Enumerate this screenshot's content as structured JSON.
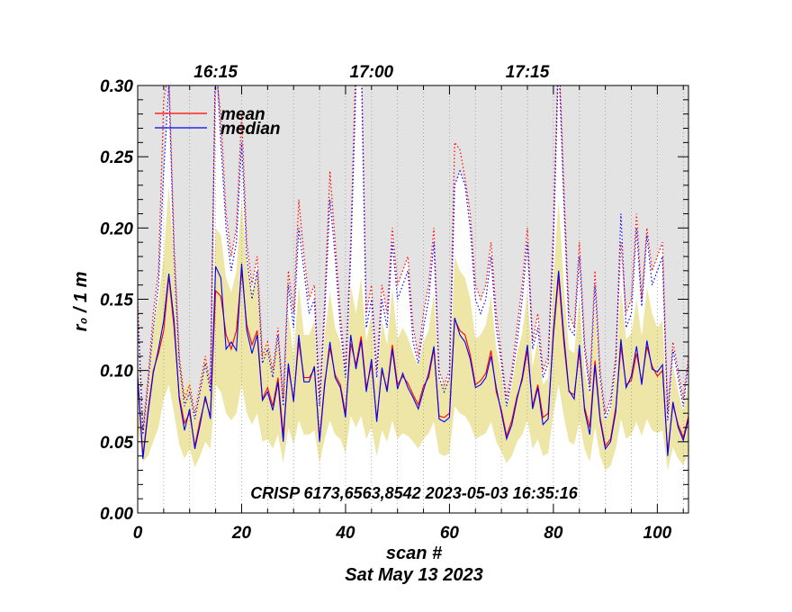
{
  "chart_data": {
    "type": "line",
    "title": "",
    "xlabel": "scan #",
    "ylabel": "r₀ / 1 m",
    "date_label": "Sat May 13 2023",
    "annotation": "CRISP 6173,6563,8542 2023-05-03 16:35:16",
    "xlim": [
      0,
      106
    ],
    "ylim": [
      0,
      0.3
    ],
    "x_ticks": [
      0,
      20,
      40,
      60,
      80,
      100
    ],
    "y_ticks": [
      0.0,
      0.05,
      0.1,
      0.15,
      0.2,
      0.25,
      0.3
    ],
    "x_tick_labels": [
      "0",
      "20",
      "40",
      "60",
      "80",
      "100"
    ],
    "y_tick_labels": [
      "0.00",
      "0.05",
      "0.10",
      "0.15",
      "0.20",
      "0.25",
      "0.30"
    ],
    "top_time_labels": [
      {
        "x": 15,
        "text": "16:15"
      },
      {
        "x": 45,
        "text": "17:00"
      },
      {
        "x": 75,
        "text": "17:15"
      }
    ],
    "vertical_gridlines_x": [
      0,
      5,
      10,
      15,
      20,
      25,
      30,
      35,
      40,
      45,
      50,
      55,
      60,
      65,
      70,
      75,
      80,
      85,
      90,
      95,
      100,
      105
    ],
    "legend_position": "top-left",
    "series": [
      {
        "name": "mean",
        "color": "#ff0000",
        "values": [
          0.094,
          0.04,
          0.072,
          0.1,
          0.112,
          0.128,
          0.166,
          0.13,
          0.082,
          0.063,
          0.07,
          0.047,
          0.065,
          0.08,
          0.068,
          0.156,
          0.152,
          0.125,
          0.115,
          0.128,
          0.17,
          0.132,
          0.118,
          0.128,
          0.08,
          0.088,
          0.075,
          0.095,
          0.055,
          0.102,
          0.08,
          0.12,
          0.095,
          0.095,
          0.101,
          0.052,
          0.092,
          0.116,
          0.097,
          0.09,
          0.07,
          0.119,
          0.104,
          0.124,
          0.088,
          0.104,
          0.066,
          0.1,
          0.087,
          0.118,
          0.09,
          0.096,
          0.091,
          0.083,
          0.076,
          0.089,
          0.095,
          0.115,
          0.068,
          0.067,
          0.07,
          0.136,
          0.128,
          0.125,
          0.111,
          0.09,
          0.093,
          0.098,
          0.114,
          0.085,
          0.072,
          0.054,
          0.065,
          0.082,
          0.093,
          0.114,
          0.075,
          0.09,
          0.067,
          0.07,
          0.124,
          0.166,
          0.12,
          0.085,
          0.083,
          0.113,
          0.074,
          0.06,
          0.107,
          0.067,
          0.047,
          0.052,
          0.074,
          0.117,
          0.09,
          0.093,
          0.112,
          0.092,
          0.117,
          0.103,
          0.096,
          0.1,
          0.043,
          0.076,
          0.062,
          0.053,
          0.068
        ],
        "ci_upper_dotted": [
          0.15,
          0.058,
          0.095,
          0.14,
          0.17,
          0.29,
          0.31,
          0.19,
          0.11,
          0.08,
          0.09,
          0.07,
          0.09,
          0.11,
          0.09,
          0.31,
          0.28,
          0.21,
          0.18,
          0.2,
          0.28,
          0.19,
          0.16,
          0.18,
          0.11,
          0.12,
          0.1,
          0.13,
          0.08,
          0.17,
          0.14,
          0.22,
          0.18,
          0.15,
          0.16,
          0.08,
          0.15,
          0.24,
          0.19,
          0.14,
          0.1,
          0.19,
          0.32,
          0.33,
          0.14,
          0.16,
          0.1,
          0.16,
          0.14,
          0.2,
          0.16,
          0.17,
          0.18,
          0.13,
          0.11,
          0.14,
          0.16,
          0.2,
          0.1,
          0.09,
          0.1,
          0.26,
          0.255,
          0.235,
          0.21,
          0.16,
          0.15,
          0.16,
          0.19,
          0.14,
          0.11,
          0.08,
          0.1,
          0.13,
          0.16,
          0.2,
          0.12,
          0.14,
          0.1,
          0.11,
          0.2,
          0.33,
          0.23,
          0.14,
          0.13,
          0.19,
          0.12,
          0.09,
          0.17,
          0.1,
          0.07,
          0.08,
          0.11,
          0.19,
          0.14,
          0.15,
          0.21,
          0.15,
          0.2,
          0.17,
          0.18,
          0.19,
          0.07,
          0.12,
          0.1,
          0.08,
          0.11
        ]
      },
      {
        "name": "median",
        "color": "#0000ff",
        "values": [
          0.096,
          0.038,
          0.07,
          0.098,
          0.115,
          0.135,
          0.168,
          0.135,
          0.08,
          0.058,
          0.073,
          0.045,
          0.062,
          0.082,
          0.066,
          0.173,
          0.165,
          0.115,
          0.12,
          0.114,
          0.175,
          0.128,
          0.112,
          0.125,
          0.079,
          0.085,
          0.072,
          0.092,
          0.05,
          0.105,
          0.078,
          0.125,
          0.092,
          0.092,
          0.103,
          0.05,
          0.09,
          0.12,
          0.095,
          0.088,
          0.067,
          0.125,
          0.101,
          0.121,
          0.085,
          0.108,
          0.064,
          0.102,
          0.085,
          0.115,
          0.087,
          0.098,
          0.088,
          0.081,
          0.073,
          0.086,
          0.098,
          0.117,
          0.066,
          0.064,
          0.067,
          0.137,
          0.125,
          0.12,
          0.108,
          0.088,
          0.09,
          0.095,
          0.11,
          0.088,
          0.07,
          0.052,
          0.062,
          0.08,
          0.095,
          0.118,
          0.073,
          0.088,
          0.062,
          0.066,
          0.128,
          0.17,
          0.125,
          0.086,
          0.08,
          0.118,
          0.072,
          0.055,
          0.104,
          0.065,
          0.045,
          0.05,
          0.071,
          0.122,
          0.088,
          0.096,
          0.117,
          0.09,
          0.121,
          0.101,
          0.099,
          0.104,
          0.04,
          0.078,
          0.06,
          0.051,
          0.066
        ],
        "ci_upper_dotted": [
          0.14,
          0.055,
          0.09,
          0.13,
          0.16,
          0.24,
          0.3,
          0.18,
          0.105,
          0.075,
          0.085,
          0.066,
          0.085,
          0.105,
          0.085,
          0.33,
          0.26,
          0.2,
          0.17,
          0.19,
          0.26,
          0.18,
          0.15,
          0.17,
          0.105,
          0.115,
          0.095,
          0.125,
          0.075,
          0.16,
          0.13,
          0.2,
          0.17,
          0.14,
          0.15,
          0.075,
          0.14,
          0.22,
          0.18,
          0.13,
          0.095,
          0.18,
          0.3,
          0.32,
          0.13,
          0.15,
          0.095,
          0.15,
          0.13,
          0.19,
          0.15,
          0.16,
          0.17,
          0.12,
          0.105,
          0.13,
          0.15,
          0.19,
          0.095,
          0.085,
          0.095,
          0.23,
          0.24,
          0.23,
          0.2,
          0.15,
          0.14,
          0.15,
          0.18,
          0.13,
          0.105,
          0.075,
          0.095,
          0.12,
          0.15,
          0.19,
          0.115,
          0.13,
          0.095,
          0.105,
          0.19,
          0.32,
          0.22,
          0.13,
          0.125,
          0.18,
          0.115,
          0.085,
          0.16,
          0.095,
          0.066,
          0.075,
          0.105,
          0.21,
          0.13,
          0.14,
          0.2,
          0.145,
          0.195,
          0.16,
          0.17,
          0.18,
          0.065,
          0.115,
          0.095,
          0.075,
          0.105
        ]
      }
    ],
    "band_light_yellow": {
      "color": "#ede6a6",
      "lower": [
        0.06,
        0.036,
        0.04,
        0.05,
        0.06,
        0.08,
        0.09,
        0.07,
        0.048,
        0.038,
        0.045,
        0.032,
        0.04,
        0.05,
        0.045,
        0.09,
        0.085,
        0.07,
        0.065,
        0.07,
        0.09,
        0.07,
        0.062,
        0.07,
        0.05,
        0.052,
        0.045,
        0.055,
        0.035,
        0.06,
        0.048,
        0.065,
        0.055,
        0.055,
        0.058,
        0.035,
        0.052,
        0.065,
        0.055,
        0.052,
        0.042,
        0.068,
        0.06,
        0.068,
        0.052,
        0.06,
        0.04,
        0.058,
        0.05,
        0.065,
        0.052,
        0.056,
        0.054,
        0.05,
        0.045,
        0.052,
        0.056,
        0.064,
        0.042,
        0.04,
        0.042,
        0.075,
        0.07,
        0.068,
        0.062,
        0.052,
        0.054,
        0.056,
        0.064,
        0.05,
        0.043,
        0.035,
        0.04,
        0.05,
        0.055,
        0.065,
        0.045,
        0.052,
        0.04,
        0.042,
        0.07,
        0.09,
        0.068,
        0.05,
        0.048,
        0.064,
        0.045,
        0.036,
        0.06,
        0.04,
        0.03,
        0.033,
        0.045,
        0.066,
        0.052,
        0.055,
        0.064,
        0.054,
        0.066,
        0.058,
        0.056,
        0.058,
        0.03,
        0.046,
        0.038,
        0.034,
        0.042
      ],
      "upper": [
        0.12,
        0.055,
        0.09,
        0.13,
        0.15,
        0.18,
        0.23,
        0.175,
        0.11,
        0.085,
        0.095,
        0.065,
        0.09,
        0.11,
        0.09,
        0.2,
        0.195,
        0.165,
        0.155,
        0.17,
        0.22,
        0.175,
        0.155,
        0.17,
        0.11,
        0.12,
        0.1,
        0.125,
        0.075,
        0.14,
        0.11,
        0.16,
        0.125,
        0.125,
        0.135,
        0.072,
        0.125,
        0.155,
        0.13,
        0.12,
        0.095,
        0.16,
        0.14,
        0.165,
        0.12,
        0.14,
        0.09,
        0.135,
        0.118,
        0.158,
        0.122,
        0.13,
        0.123,
        0.112,
        0.103,
        0.12,
        0.128,
        0.155,
        0.092,
        0.09,
        0.095,
        0.18,
        0.17,
        0.165,
        0.15,
        0.122,
        0.125,
        0.132,
        0.152,
        0.115,
        0.098,
        0.075,
        0.09,
        0.112,
        0.126,
        0.155,
        0.102,
        0.122,
        0.09,
        0.095,
        0.165,
        0.22,
        0.16,
        0.115,
        0.112,
        0.152,
        0.1,
        0.082,
        0.145,
        0.09,
        0.065,
        0.072,
        0.1,
        0.158,
        0.122,
        0.126,
        0.15,
        0.124,
        0.158,
        0.14,
        0.13,
        0.135,
        0.06,
        0.104,
        0.085,
        0.072,
        0.092
      ]
    },
    "band_light_gray": {
      "color": "#e3e3e3",
      "lower": [
        0.15,
        0.058,
        0.095,
        0.14,
        0.17,
        0.24,
        0.3,
        0.19,
        0.11,
        0.08,
        0.09,
        0.07,
        0.09,
        0.11,
        0.09,
        0.3,
        0.26,
        0.21,
        0.18,
        0.2,
        0.26,
        0.19,
        0.16,
        0.18,
        0.11,
        0.12,
        0.1,
        0.13,
        0.08,
        0.16,
        0.14,
        0.2,
        0.18,
        0.15,
        0.16,
        0.08,
        0.15,
        0.22,
        0.19,
        0.14,
        0.1,
        0.19,
        0.3,
        0.32,
        0.14,
        0.16,
        0.1,
        0.16,
        0.14,
        0.2,
        0.16,
        0.17,
        0.18,
        0.13,
        0.11,
        0.14,
        0.16,
        0.2,
        0.1,
        0.09,
        0.1,
        0.23,
        0.24,
        0.23,
        0.21,
        0.16,
        0.15,
        0.16,
        0.19,
        0.14,
        0.11,
        0.08,
        0.1,
        0.13,
        0.16,
        0.2,
        0.12,
        0.14,
        0.1,
        0.11,
        0.2,
        0.32,
        0.23,
        0.14,
        0.13,
        0.19,
        0.12,
        0.09,
        0.17,
        0.1,
        0.07,
        0.08,
        0.11,
        0.21,
        0.14,
        0.15,
        0.21,
        0.15,
        0.2,
        0.17,
        0.18,
        0.19,
        0.07,
        0.12,
        0.1,
        0.08,
        0.11
      ],
      "upper": [
        0.33,
        0.33,
        0.33,
        0.33,
        0.33,
        0.33,
        0.33,
        0.33,
        0.33,
        0.33,
        0.33,
        0.33,
        0.33,
        0.33,
        0.33,
        0.33,
        0.33,
        0.33,
        0.33,
        0.33,
        0.33,
        0.33,
        0.33,
        0.33,
        0.33,
        0.33,
        0.33,
        0.33,
        0.33,
        0.33,
        0.33,
        0.33,
        0.33,
        0.33,
        0.33,
        0.33,
        0.33,
        0.33,
        0.33,
        0.33,
        0.33,
        0.33,
        0.33,
        0.33,
        0.33,
        0.33,
        0.33,
        0.33,
        0.33,
        0.33,
        0.33,
        0.33,
        0.33,
        0.33,
        0.33,
        0.33,
        0.33,
        0.33,
        0.33,
        0.33,
        0.33,
        0.33,
        0.33,
        0.33,
        0.33,
        0.33,
        0.33,
        0.33,
        0.33,
        0.33,
        0.33,
        0.33,
        0.33,
        0.33,
        0.33,
        0.33,
        0.33,
        0.33,
        0.33,
        0.33,
        0.33,
        0.33,
        0.33,
        0.33,
        0.33,
        0.33,
        0.33,
        0.33,
        0.33,
        0.33,
        0.33,
        0.33,
        0.33,
        0.33,
        0.33,
        0.33,
        0.33,
        0.33,
        0.33,
        0.33,
        0.33,
        0.33,
        0.33,
        0.33,
        0.33,
        0.33,
        0.33
      ]
    }
  }
}
